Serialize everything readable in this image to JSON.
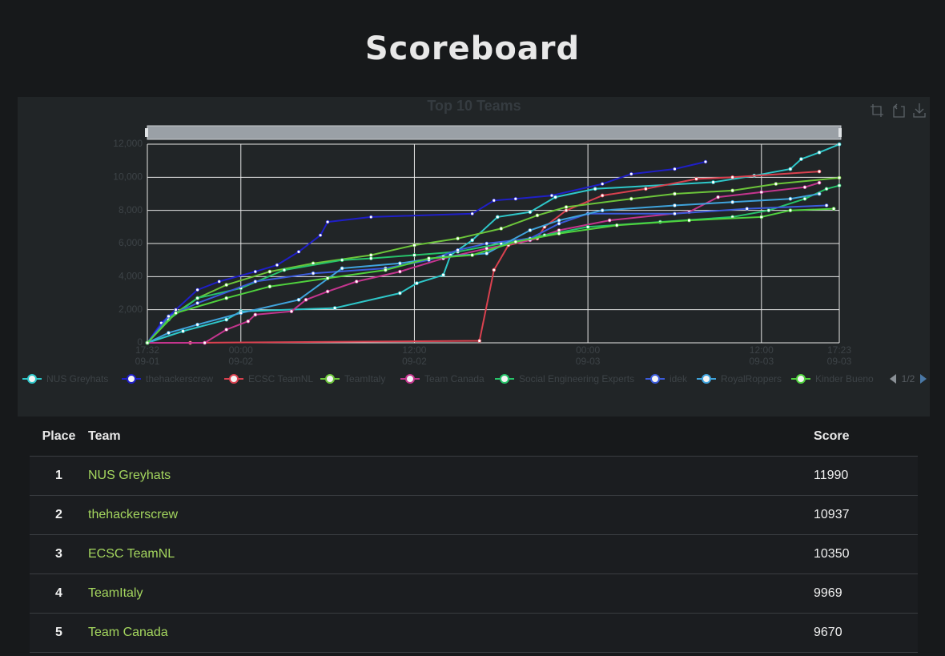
{
  "title": "Scoreboard",
  "chart_data": {
    "type": "line",
    "title": "Top 10 Teams",
    "grid": true,
    "legend_position": "bottom",
    "legend_page": "1/2",
    "xlim": [
      "09-01 17:32",
      "09-03 17:23"
    ],
    "xticks": [
      {
        "value": "09-01 17:32",
        "time": "17:32",
        "date": "09-01"
      },
      {
        "value": "09-02 00:00",
        "time": "00:00",
        "date": "09-02"
      },
      {
        "value": "09-02 12:00",
        "time": "12:00",
        "date": "09-02"
      },
      {
        "value": "09-03 00:00",
        "time": "00:00",
        "date": "09-03"
      },
      {
        "value": "09-03 12:00",
        "time": "12:00",
        "date": "09-03"
      },
      {
        "value": "09-03 17:23",
        "time": "17:23",
        "date": "09-03"
      }
    ],
    "ylim": [
      0,
      12000
    ],
    "yticks": [
      0,
      {
        "value": 2000,
        "label": "2,000"
      },
      {
        "value": 4000,
        "label": "4,000"
      },
      {
        "value": 6000,
        "label": "6,000"
      },
      {
        "value": 8000,
        "label": "8,000"
      },
      {
        "value": 10000,
        "label": "10,000"
      },
      {
        "value": 12000,
        "label": "12,000"
      }
    ],
    "series": [
      {
        "name": "NUS Greyhats",
        "color": "#2ec7c9",
        "x": [
          "09-01 17:32",
          "09-01 20:00",
          "09-01 23:00",
          "09-02 00:00",
          "09-02 06:30",
          "09-02 11:00",
          "09-02 12:10",
          "09-02 14:00",
          "09-02 14:30",
          "09-02 16:00",
          "09-02 17:45",
          "09-02 20:00",
          "09-02 21:45",
          "09-03 00:30",
          "09-03 08:40",
          "09-03 11:30",
          "09-03 14:00",
          "09-03 14:45",
          "09-03 16:00",
          "09-03 17:23"
        ],
        "values": [
          0,
          700,
          1400,
          1900,
          2100,
          3000,
          3600,
          4100,
          5300,
          6200,
          7600,
          7900,
          8800,
          9300,
          9700,
          10100,
          10500,
          11100,
          11500,
          11990
        ]
      },
      {
        "name": "thehackerscrew",
        "color": "#1f1fc8",
        "x": [
          "09-01 17:32",
          "09-01 18:30",
          "09-01 19:30",
          "09-01 21:00",
          "09-01 22:30",
          "09-02 01:00",
          "09-02 02:30",
          "09-02 04:00",
          "09-02 05:30",
          "09-02 06:00",
          "09-02 09:00",
          "09-02 16:00",
          "09-02 17:30",
          "09-02 19:00",
          "09-02 21:30",
          "09-03 01:00",
          "09-03 03:00",
          "09-03 06:00",
          "09-03 08:08"
        ],
        "values": [
          0,
          1200,
          2000,
          3200,
          3700,
          4300,
          4700,
          5500,
          6500,
          7300,
          7600,
          7800,
          8600,
          8700,
          8900,
          9600,
          10200,
          10500,
          10937
        ]
      },
      {
        "name": "ECSC TeamNL",
        "color": "#d9414f",
        "x": [
          "09-01 17:32",
          "09-01 20:30",
          "09-02 16:30",
          "09-02 17:30",
          "09-02 18:30",
          "09-02 20:30",
          "09-02 21:00",
          "09-02 22:30",
          "09-03 01:00",
          "09-03 04:00",
          "09-03 07:30",
          "09-03 10:00",
          "09-03 16:00"
        ],
        "values": [
          0,
          0,
          120,
          4400,
          5900,
          6300,
          7000,
          8000,
          8900,
          9300,
          9900,
          10000,
          10350
        ]
      },
      {
        "name": "TeamItaly",
        "color": "#6cc53a",
        "x": [
          "09-01 17:32",
          "09-01 19:00",
          "09-01 21:00",
          "09-01 23:00",
          "09-02 02:00",
          "09-02 05:00",
          "09-02 09:00",
          "09-02 12:00",
          "09-02 15:00",
          "09-02 18:00",
          "09-02 20:30",
          "09-02 22:30",
          "09-03 03:00",
          "09-03 06:00",
          "09-03 10:00",
          "09-03 13:00",
          "09-03 17:23"
        ],
        "values": [
          0,
          1500,
          2700,
          3500,
          4300,
          4800,
          5300,
          5900,
          6300,
          6900,
          7700,
          8200,
          8700,
          9000,
          9200,
          9600,
          9969
        ]
      },
      {
        "name": "Team Canada",
        "color": "#c4358e",
        "x": [
          "09-01 17:32",
          "09-01 21:30",
          "09-01 23:00",
          "09-02 00:30",
          "09-02 01:00",
          "09-02 03:30",
          "09-02 04:30",
          "09-02 06:00",
          "09-02 08:00",
          "09-02 11:00",
          "09-02 14:00",
          "09-02 17:00",
          "09-02 20:00",
          "09-02 22:00",
          "09-03 01:30",
          "09-03 07:00",
          "09-03 09:00",
          "09-03 12:00",
          "09-03 15:00",
          "09-03 16:00"
        ],
        "values": [
          0,
          0,
          800,
          1300,
          1700,
          1900,
          2600,
          3100,
          3700,
          4300,
          5100,
          5700,
          6200,
          6800,
          7400,
          7900,
          8800,
          9100,
          9400,
          9670
        ]
      },
      {
        "name": "Social Engineering Experts",
        "color": "#27c46a",
        "x": [
          "09-01 17:32",
          "09-01 19:00",
          "09-01 21:00",
          "09-02 00:00",
          "09-02 03:00",
          "09-02 07:00",
          "09-02 09:00",
          "09-02 12:00",
          "09-02 15:00",
          "09-02 18:00",
          "09-02 21:00",
          "09-03 00:00",
          "09-03 05:00",
          "09-03 10:00",
          "09-03 12:30",
          "09-03 15:00",
          "09-03 16:30",
          "09-03 17:23"
        ],
        "values": [
          0,
          1400,
          2700,
          3300,
          4400,
          5000,
          5100,
          5300,
          5500,
          6000,
          6500,
          7000,
          7300,
          7600,
          8000,
          8700,
          9300,
          9500
        ]
      },
      {
        "name": "idek",
        "color": "#3b5bdb",
        "x": [
          "09-01 17:32",
          "09-01 19:00",
          "09-01 21:00",
          "09-02 01:00",
          "09-02 05:00",
          "09-02 10:00",
          "09-02 13:00",
          "09-02 15:00",
          "09-02 17:00",
          "09-02 20:00",
          "09-02 22:00",
          "09-03 00:00",
          "09-03 06:00",
          "09-03 11:00",
          "09-03 16:30"
        ],
        "values": [
          0,
          1600,
          2400,
          3700,
          4200,
          4500,
          5000,
          5600,
          6000,
          6300,
          7200,
          7800,
          7800,
          8100,
          8300
        ]
      },
      {
        "name": "RoyalRoppers",
        "color": "#3fa3dc",
        "x": [
          "09-01 17:32",
          "09-01 19:00",
          "09-01 21:00",
          "09-02 00:00",
          "09-02 04:00",
          "09-02 07:00",
          "09-02 11:00",
          "09-02 14:00",
          "09-02 17:00",
          "09-02 20:00",
          "09-02 22:00",
          "09-03 01:00",
          "09-03 06:00",
          "09-03 10:00",
          "09-03 14:00",
          "09-03 16:00"
        ],
        "values": [
          0,
          600,
          1100,
          1800,
          2600,
          4500,
          4800,
          5200,
          5400,
          6800,
          7400,
          8000,
          8300,
          8500,
          8700,
          9000
        ]
      },
      {
        "name": "Kinder Bueno",
        "color": "#4fd13d",
        "x": [
          "09-01 17:32",
          "09-01 19:30",
          "09-01 23:00",
          "09-02 02:00",
          "09-02 06:00",
          "09-02 10:00",
          "09-02 13:00",
          "09-02 16:00",
          "09-02 19:00",
          "09-02 22:00",
          "09-03 02:00",
          "09-03 07:00",
          "09-03 12:00",
          "09-03 14:00",
          "09-03 17:00"
        ],
        "values": [
          0,
          1800,
          2700,
          3400,
          3900,
          4400,
          5100,
          5300,
          6100,
          6600,
          7100,
          7400,
          7600,
          8000,
          8100
        ]
      }
    ]
  },
  "table": {
    "header": [
      "Place",
      "Team",
      "Score"
    ],
    "rows": [
      [
        1,
        "NUS Greyhats",
        11990
      ],
      [
        2,
        "thehackerscrew",
        10937
      ],
      [
        3,
        "ECSC TeamNL",
        10350
      ],
      [
        4,
        "TeamItaly",
        9969
      ],
      [
        5,
        "Team Canada",
        9670
      ]
    ]
  }
}
